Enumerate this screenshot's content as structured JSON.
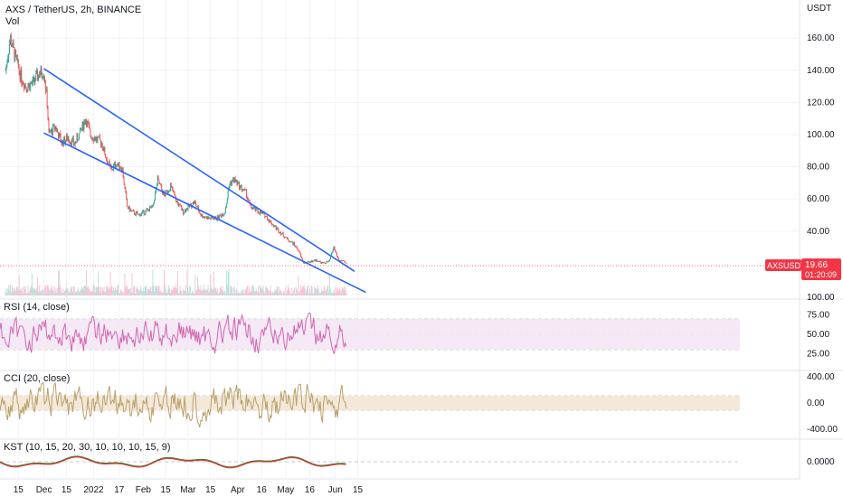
{
  "header": {
    "title": "AXS / TetherUS, 2h, BINANCE",
    "vol_label": "Vol",
    "currency": "USDT"
  },
  "price_tag": {
    "symbol": "AXSUSDT",
    "price": "19.66",
    "countdown": "01:20:09",
    "color": "#f23645"
  },
  "panes": {
    "rsi_label": "RSI (14, close)",
    "cci_label": "CCI (20, close)",
    "kst_label": "KST (10, 15, 20, 30, 10, 10, 10, 15, 9)"
  },
  "chart_data": {
    "type": "line",
    "title": "AXS / TetherUS, 2h, BINANCE",
    "price_axis": {
      "ticks": [
        "160.00",
        "140.00",
        "120.00",
        "100.00",
        "80.00",
        "60.00",
        "40.00"
      ],
      "unit": "USDT",
      "ylim": [
        0,
        175
      ]
    },
    "volume_axis": {
      "ticks": [
        "100.00"
      ]
    },
    "rsi_axis": {
      "ticks": [
        "75.00",
        "50.00",
        "25.00"
      ],
      "band": [
        30,
        70
      ]
    },
    "cci_axis": {
      "ticks": [
        "400.00",
        "0.00",
        "-400.00"
      ],
      "band": [
        -100,
        100
      ]
    },
    "kst_axis": {
      "ticks": [
        "0.0000"
      ]
    },
    "x_tick_labels": [
      "15",
      "Dec",
      "15",
      "2022",
      "17",
      "Feb",
      "15",
      "Mar",
      "15",
      "Apr",
      "16",
      "May",
      "16",
      "Jun",
      "15"
    ],
    "price_series": {
      "name": "AXSUSDT",
      "points": [
        [
          "Nov 07",
          140
        ],
        [
          "Nov 10",
          160
        ],
        [
          "Nov 13",
          148
        ],
        [
          "Nov 17",
          135
        ],
        [
          "Nov 20",
          130
        ],
        [
          "Nov 24",
          132
        ],
        [
          "Nov 28",
          138
        ],
        [
          "Dec 01",
          139
        ],
        [
          "Dec 03",
          120
        ],
        [
          "Dec 04",
          100
        ],
        [
          "Dec 08",
          105
        ],
        [
          "Dec 12",
          95
        ],
        [
          "Dec 16",
          98
        ],
        [
          "Dec 20",
          94
        ],
        [
          "Dec 23",
          100
        ],
        [
          "Dec 27",
          110
        ],
        [
          "Dec 30",
          100
        ],
        [
          "Jan 03",
          97
        ],
        [
          "Jan 06",
          95
        ],
        [
          "Jan 09",
          85
        ],
        [
          "Jan 12",
          78
        ],
        [
          "Jan 15",
          82
        ],
        [
          "Jan 18",
          80
        ],
        [
          "Jan 19",
          78
        ],
        [
          "Jan 22",
          55
        ],
        [
          "Jan 25",
          52
        ],
        [
          "Jan 29",
          50
        ],
        [
          "Feb 02",
          52
        ],
        [
          "Feb 07",
          55
        ],
        [
          "Feb 10",
          72
        ],
        [
          "Feb 14",
          62
        ],
        [
          "Feb 18",
          68
        ],
        [
          "Feb 22",
          58
        ],
        [
          "Feb 26",
          52
        ],
        [
          "Mar 01",
          55
        ],
        [
          "Mar 05",
          58
        ],
        [
          "Mar 09",
          50
        ],
        [
          "Mar 14",
          48
        ],
        [
          "Mar 19",
          48
        ],
        [
          "Mar 24",
          52
        ],
        [
          "Mar 27",
          70
        ],
        [
          "Mar 30",
          72
        ],
        [
          "Apr 02",
          68
        ],
        [
          "Apr 06",
          64
        ],
        [
          "Apr 09",
          55
        ],
        [
          "Apr 14",
          52
        ],
        [
          "Apr 18",
          50
        ],
        [
          "Apr 22",
          45
        ],
        [
          "Apr 27",
          40
        ],
        [
          "May 02",
          35
        ],
        [
          "May 06",
          32
        ],
        [
          "May 09",
          28
        ],
        [
          "May 12",
          20
        ],
        [
          "May 16",
          21
        ],
        [
          "May 20",
          22
        ],
        [
          "May 24",
          20
        ],
        [
          "May 28",
          21
        ],
        [
          "May 31",
          30
        ],
        [
          "Jun 03",
          22
        ],
        [
          "Jun 06",
          21
        ],
        [
          "Jun 08",
          19.66
        ]
      ]
    },
    "trendlines": [
      {
        "name": "upper",
        "from": [
          "Dec 01",
          141
        ],
        "to": [
          "Jun 13",
          15
        ],
        "color": "#2962ff"
      },
      {
        "name": "lower",
        "from": [
          "Dec 01",
          101
        ],
        "to": [
          "Jun 20",
          2
        ],
        "color": "#2962ff"
      }
    ],
    "current_price": 19.66
  }
}
